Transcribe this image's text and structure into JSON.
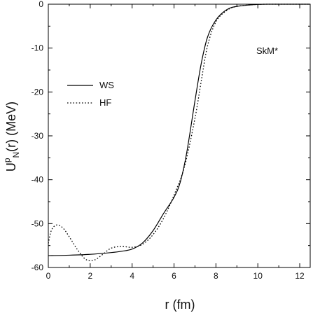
{
  "chart_data": {
    "type": "line",
    "xlabel": "r (fm)",
    "ylabel": {
      "main": "U",
      "sup": "p",
      "sub": "N",
      "tail": "(r) (MeV)"
    },
    "xlim": [
      0,
      12.5
    ],
    "ylim": [
      -60,
      0
    ],
    "xticks": [
      0,
      2,
      4,
      6,
      8,
      10,
      12
    ],
    "yticks": [
      0,
      -10,
      -20,
      -30,
      -40,
      -50,
      -60
    ],
    "annotation": "SkM*",
    "legend_position": "upper-left",
    "series": [
      {
        "name": "WS",
        "style": "solid",
        "color": "#000000",
        "points": [
          [
            0,
            -57.3
          ],
          [
            1,
            -57.2
          ],
          [
            2,
            -57.0
          ],
          [
            3,
            -56.6
          ],
          [
            3.5,
            -56.3
          ],
          [
            4,
            -55.8
          ],
          [
            4.5,
            -54.4
          ],
          [
            5,
            -51.6
          ],
          [
            5.5,
            -47.7
          ],
          [
            6,
            -44.0
          ],
          [
            6.3,
            -40.5
          ],
          [
            6.6,
            -34.0
          ],
          [
            7,
            -22.0
          ],
          [
            7.3,
            -13.5
          ],
          [
            7.6,
            -7.5
          ],
          [
            8,
            -3.6
          ],
          [
            8.5,
            -1.3
          ],
          [
            9,
            -0.5
          ],
          [
            10,
            -0.05
          ],
          [
            11,
            0
          ],
          [
            12.5,
            0
          ]
        ]
      },
      {
        "name": "HF",
        "style": "dotted",
        "color": "#000000",
        "points": [
          [
            0,
            -54.5
          ],
          [
            0.15,
            -51.5
          ],
          [
            0.4,
            -50.3
          ],
          [
            0.7,
            -51.0
          ],
          [
            1,
            -53.0
          ],
          [
            1.4,
            -56.0
          ],
          [
            1.8,
            -58.2
          ],
          [
            2.2,
            -58.3
          ],
          [
            2.6,
            -57.0
          ],
          [
            3,
            -55.6
          ],
          [
            3.5,
            -55.2
          ],
          [
            4,
            -55.4
          ],
          [
            4.5,
            -54.7
          ],
          [
            5,
            -52.5
          ],
          [
            5.5,
            -48.8
          ],
          [
            6,
            -43.5
          ],
          [
            6.5,
            -37.0
          ],
          [
            7,
            -26.0
          ],
          [
            7.3,
            -17.5
          ],
          [
            7.6,
            -9.5
          ],
          [
            8,
            -4.0
          ],
          [
            8.5,
            -1.5
          ],
          [
            9,
            -0.5
          ],
          [
            10,
            -0.05
          ],
          [
            11,
            0
          ],
          [
            12.5,
            0
          ]
        ]
      }
    ]
  }
}
